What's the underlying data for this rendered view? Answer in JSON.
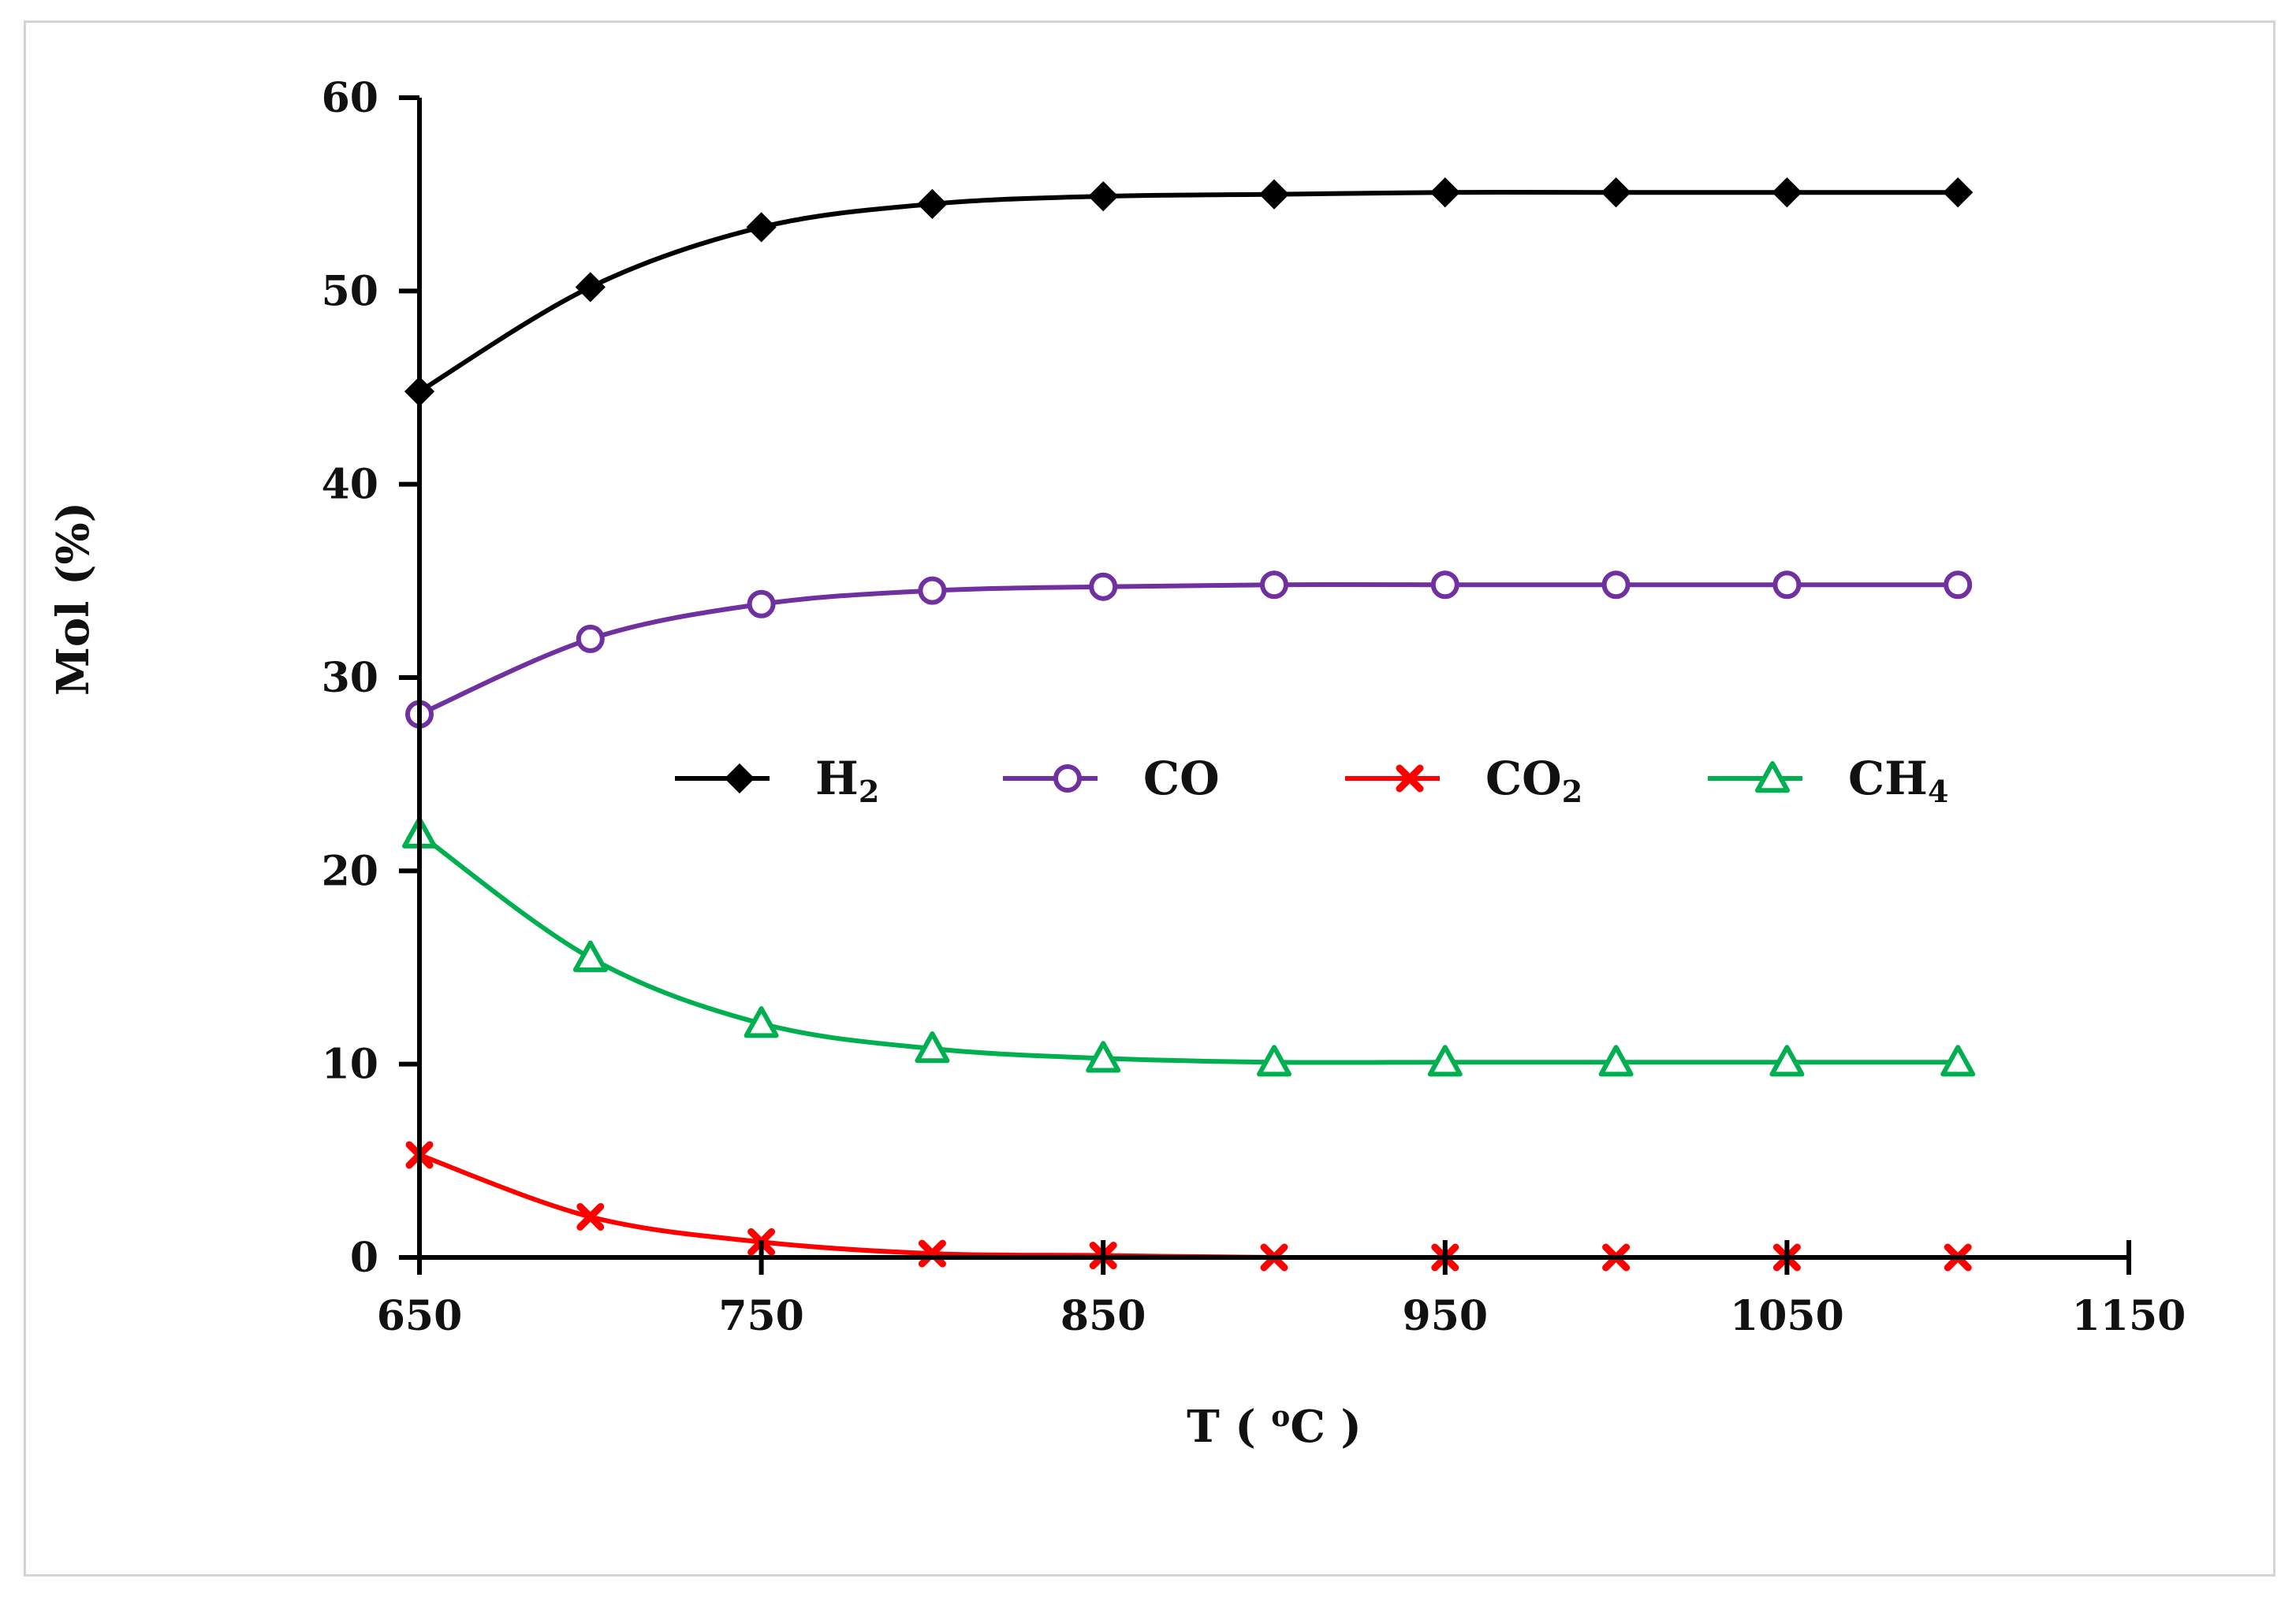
{
  "chart_data": {
    "type": "line",
    "title": "",
    "xlabel": {
      "prefix": "T ( ",
      "sup": "o",
      "suffix": "C )"
    },
    "ylabel": "Mol (%)",
    "xlim": [
      650,
      1150
    ],
    "ylim": [
      0,
      60
    ],
    "xticks": [
      650,
      750,
      850,
      950,
      1050,
      1150
    ],
    "yticks": [
      0,
      10,
      20,
      30,
      40,
      50,
      60
    ],
    "grid": false,
    "legend_position": "center",
    "x": [
      650,
      700,
      750,
      800,
      850,
      900,
      950,
      1000,
      1050,
      1100
    ],
    "series": [
      {
        "name": "H2",
        "label": "H",
        "sub": "2",
        "color": "#000000",
        "marker": "diamond",
        "values": [
          44.8,
          50.2,
          53.3,
          54.5,
          54.9,
          55.0,
          55.1,
          55.1,
          55.1,
          55.1
        ]
      },
      {
        "name": "CO",
        "label": "CO",
        "sub": "",
        "color": "#7030a0",
        "marker": "circle",
        "values": [
          28.1,
          32.0,
          33.8,
          34.5,
          34.7,
          34.8,
          34.8,
          34.8,
          34.8,
          34.8
        ]
      },
      {
        "name": "CO2",
        "label": "CO",
        "sub": "2",
        "color": "#ff0000",
        "marker": "x",
        "values": [
          5.3,
          2.1,
          0.8,
          0.2,
          0.1,
          0.0,
          0.0,
          0.0,
          0.0,
          0.0
        ]
      },
      {
        "name": "CH4",
        "label": "CH",
        "sub": "4",
        "color": "#00b050",
        "marker": "triangle",
        "values": [
          21.9,
          15.5,
          12.1,
          10.8,
          10.3,
          10.1,
          10.1,
          10.1,
          10.1,
          10.1
        ]
      }
    ]
  }
}
